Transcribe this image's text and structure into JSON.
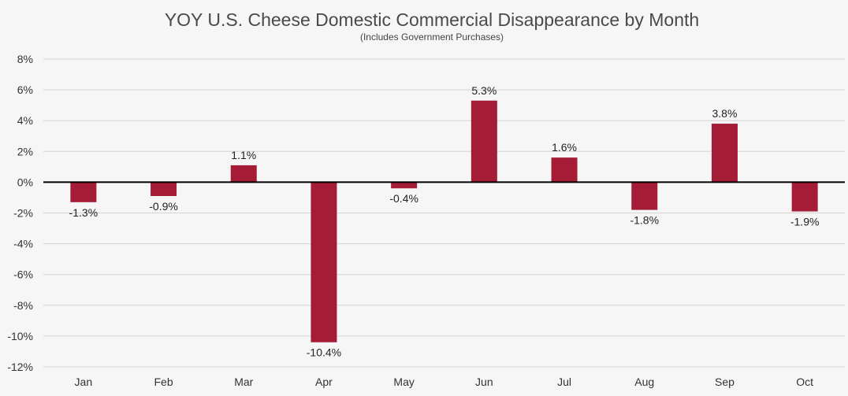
{
  "chart_data": {
    "type": "bar",
    "title": "YOY U.S. Cheese Domestic Commercial Disappearance by Month",
    "subtitle": "(Includes Government  Purchases)",
    "categories": [
      "Jan",
      "Feb",
      "Mar",
      "Apr",
      "May",
      "Jun",
      "Jul",
      "Aug",
      "Sep",
      "Oct"
    ],
    "values": [
      -1.3,
      -0.9,
      1.1,
      -10.4,
      -0.4,
      5.3,
      1.6,
      -1.8,
      3.8,
      -1.9
    ],
    "data_labels": [
      "-1.3%",
      "-0.9%",
      "1.1%",
      "-10.4%",
      "-0.4%",
      "5.3%",
      "1.6%",
      "-1.8%",
      "3.8%",
      "-1.9%"
    ],
    "ylim": [
      -12,
      8
    ],
    "yticks": [
      8,
      6,
      4,
      2,
      0,
      -2,
      -4,
      -6,
      -8,
      -10,
      -12
    ],
    "ytick_labels": [
      "8%",
      "6%",
      "4%",
      "2%",
      "0%",
      "-2%",
      "-4%",
      "-6%",
      "-8%",
      "-10%",
      "-12%"
    ],
    "xlabel": "",
    "ylabel": "",
    "grid": true,
    "legend": "none",
    "bar_color": "#a51c36"
  }
}
